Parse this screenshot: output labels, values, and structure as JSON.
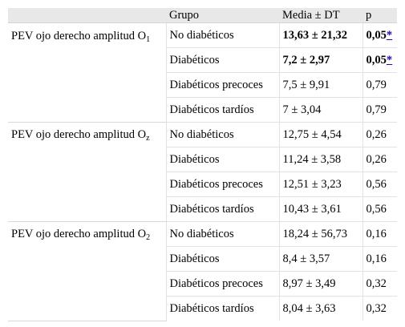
{
  "header": {
    "col1": "",
    "col2": "Grupo",
    "col3": "Media ± DT",
    "col4": "p"
  },
  "groups": [
    {
      "label_main": "PEV ojo derecho amplitud O",
      "label_sub": "1",
      "rows": [
        {
          "grupo": "No diabéticos",
          "media": "13,63 ± 21,32",
          "p": "0,05",
          "star": "*",
          "bold": true
        },
        {
          "grupo": "Diabéticos",
          "media": "7,2 ± 2,97",
          "p": "0,05",
          "star": "*",
          "bold": true
        },
        {
          "grupo": "Diabéticos precoces",
          "media": "7,5 ± 9,91",
          "p": "0,79"
        },
        {
          "grupo": "Diabéticos tardíos",
          "media": "7 ± 3,04",
          "p": "0,79"
        }
      ]
    },
    {
      "label_main": "PEV ojo derecho amplitud O",
      "label_sub": "z",
      "rows": [
        {
          "grupo": "No diabéticos",
          "media": "12,75 ± 4,54",
          "p": "0,26"
        },
        {
          "grupo": "Diabéticos",
          "media": "11,24 ± 3,58",
          "p": "0,26"
        },
        {
          "grupo": "Diabéticos precoces",
          "media": "12,51 ± 3,23",
          "p": "0,56"
        },
        {
          "grupo": "Diabéticos tardíos",
          "media": "10,43 ± 3,61",
          "p": "0,56"
        }
      ]
    },
    {
      "label_main": "PEV ojo derecho amplitud O",
      "label_sub": "2",
      "rows": [
        {
          "grupo": "No diabéticos",
          "media": "18,24 ± 56,73",
          "p": "0,16"
        },
        {
          "grupo": "Diabéticos",
          "media": "8,4 ± 3,57",
          "p": "0,16"
        },
        {
          "grupo": "Diabéticos precoces",
          "media": "8,97 ± 3,49",
          "p": "0,32"
        },
        {
          "grupo": "Diabéticos tardíos",
          "media": "8,04 ± 3,63",
          "p": "0,32"
        }
      ]
    }
  ]
}
